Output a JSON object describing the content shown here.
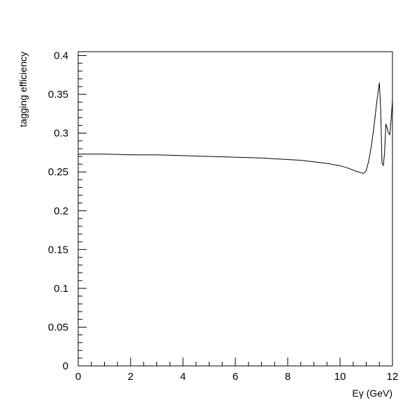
{
  "chart_data": {
    "type": "line",
    "title": "",
    "xlabel": "Eγ (GeV)",
    "ylabel": "tagging efficiency",
    "xlim": [
      0,
      12
    ],
    "ylim": [
      0,
      0.405
    ],
    "x_ticks": [
      "0",
      "2",
      "4",
      "6",
      "8",
      "10",
      "12"
    ],
    "y_ticks": [
      "0",
      "0.05",
      "0.1",
      "0.15",
      "0.2",
      "0.25",
      "0.3",
      "0.35",
      "0.4"
    ],
    "grid": false,
    "legend": "none",
    "line_color": "#000000",
    "series": [
      {
        "x": [
          0,
          1,
          2,
          3,
          4,
          5,
          6,
          7,
          8,
          8.5,
          9,
          9.5,
          10,
          10.3,
          10.6,
          10.8,
          10.9,
          11.0,
          11.1,
          11.2,
          11.3,
          11.4,
          11.5,
          11.55,
          11.6,
          11.65,
          11.7,
          11.75,
          11.8,
          11.85,
          11.9,
          11.95,
          12.0
        ],
        "y": [
          0.273,
          0.273,
          0.272,
          0.272,
          0.271,
          0.27,
          0.269,
          0.268,
          0.266,
          0.265,
          0.263,
          0.261,
          0.258,
          0.255,
          0.251,
          0.249,
          0.248,
          0.252,
          0.265,
          0.285,
          0.31,
          0.34,
          0.365,
          0.33,
          0.262,
          0.258,
          0.275,
          0.312,
          0.306,
          0.3,
          0.298,
          0.318,
          0.342
        ]
      }
    ]
  }
}
